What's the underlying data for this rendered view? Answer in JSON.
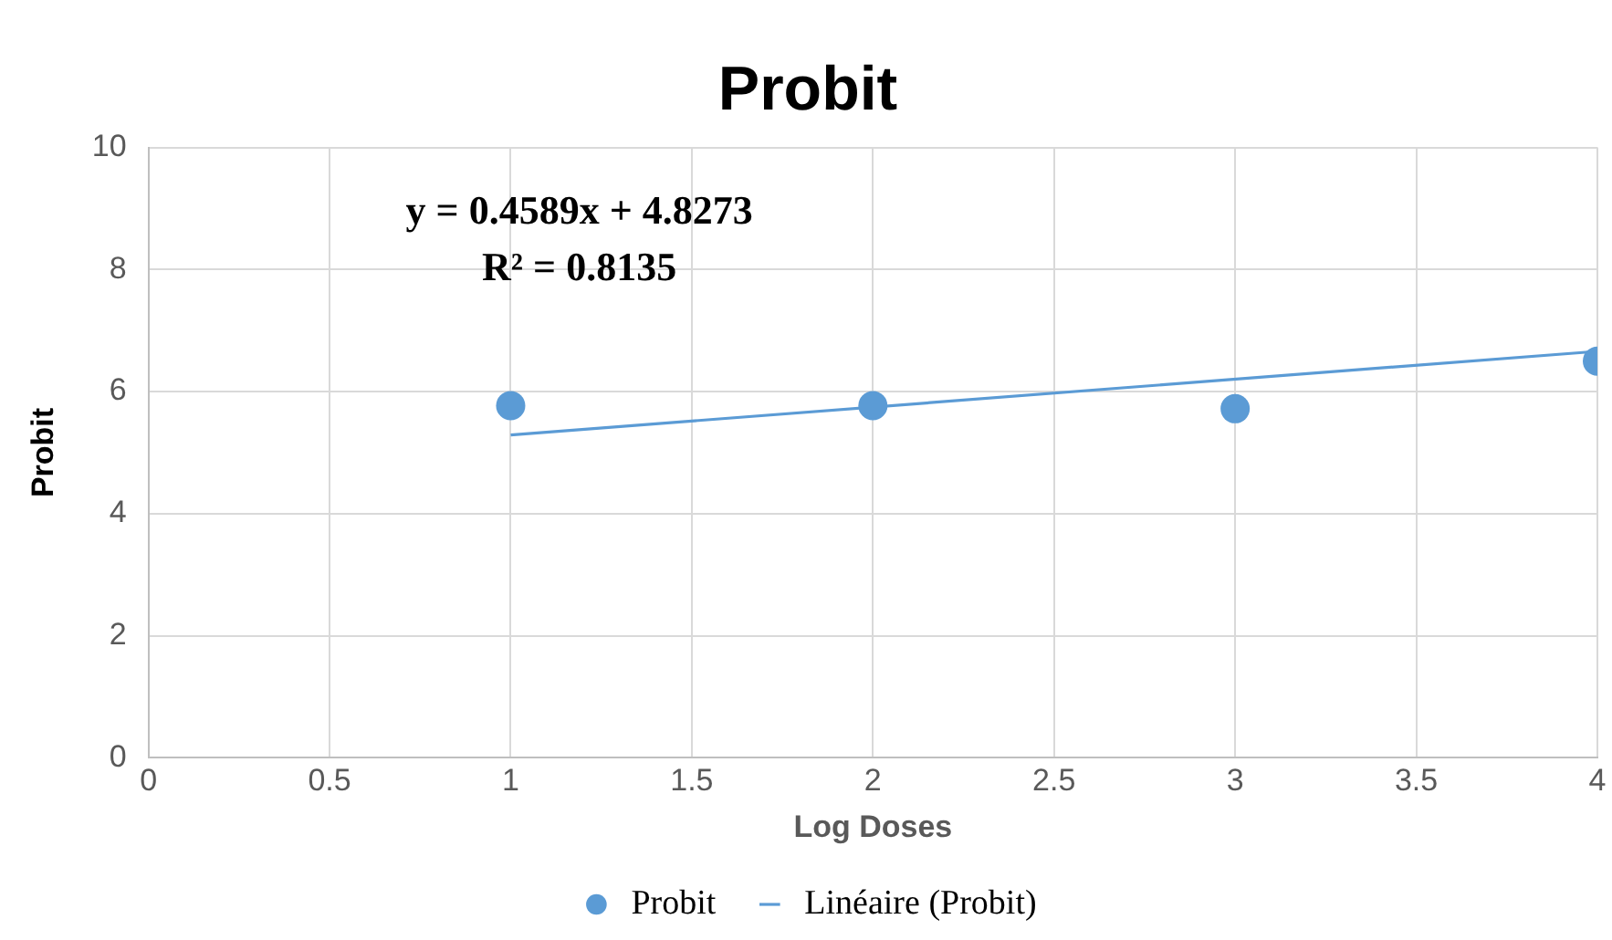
{
  "chart_data": {
    "type": "scatter",
    "title": "Probit",
    "xlabel": "Log Doses",
    "ylabel": "Probit",
    "x": [
      1,
      2,
      3,
      4
    ],
    "series": [
      {
        "name": "Probit",
        "type": "scatter",
        "marker": "circle",
        "color": "#5b9bd5",
        "values": [
          5.77,
          5.77,
          5.72,
          6.5
        ]
      },
      {
        "name": "Linéaire (Probit)",
        "type": "line",
        "marker": "none",
        "color": "#5b9bd5",
        "x": [
          1,
          4
        ],
        "values": [
          5.29,
          6.66
        ]
      }
    ],
    "annotations": [
      "y = 0.4589x + 4.8273",
      "R² = 0.8135"
    ],
    "xlim": [
      0,
      4
    ],
    "xticks": [
      0,
      0.5,
      1,
      1.5,
      2,
      2.5,
      3,
      3.5,
      4
    ],
    "ylim": [
      0,
      10
    ],
    "yticks": [
      0,
      2,
      4,
      6,
      8,
      10
    ],
    "grid": true,
    "legend": "bottom",
    "line_style": "solid"
  }
}
